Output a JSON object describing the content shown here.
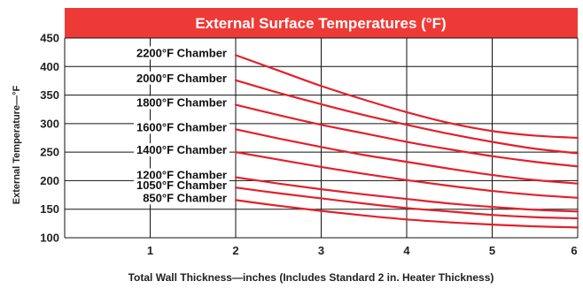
{
  "chart_data": {
    "type": "line",
    "title": "External Surface Temperatures (°F)",
    "xlabel": "Total Wall Thickness—inches (Includes Standard 2 in. Heater Thickness)",
    "ylabel": "External Temperature—°F",
    "xlim": [
      0,
      6
    ],
    "ylim": [
      100,
      450
    ],
    "x_ticks": [
      "1",
      "2",
      "3",
      "4",
      "5",
      "6"
    ],
    "y_ticks": [
      "100",
      "150",
      "200",
      "250",
      "300",
      "350",
      "400",
      "450"
    ],
    "grid": true,
    "series": [
      {
        "name": "2200°F Chamber",
        "x": [
          2,
          2.5,
          3,
          3.5,
          4,
          4.5,
          5,
          5.5,
          6
        ],
        "y": [
          420,
          393,
          366,
          342,
          320,
          301,
          287,
          279,
          275
        ]
      },
      {
        "name": "2000°F Chamber",
        "x": [
          2,
          2.5,
          3,
          3.5,
          4,
          4.5,
          5,
          5.5,
          6
        ],
        "y": [
          376,
          354,
          334,
          315,
          298,
          282,
          268,
          256,
          248
        ]
      },
      {
        "name": "1800°F Chamber",
        "x": [
          2,
          2.5,
          3,
          3.5,
          4,
          4.5,
          5,
          5.5,
          6
        ],
        "y": [
          333,
          315,
          298,
          283,
          268,
          255,
          243,
          233,
          225
        ]
      },
      {
        "name": "1600°F Chamber",
        "x": [
          2,
          2.5,
          3,
          3.5,
          4,
          4.5,
          5,
          5.5,
          6
        ],
        "y": [
          290,
          274,
          259,
          245,
          233,
          221,
          210,
          201,
          195
        ]
      },
      {
        "name": "1400°F Chamber",
        "x": [
          2,
          2.5,
          3,
          3.5,
          4,
          4.5,
          5,
          5.5,
          6
        ],
        "y": [
          250,
          237,
          224,
          212,
          201,
          191,
          182,
          175,
          170
        ]
      },
      {
        "name": "1200°F Chamber",
        "x": [
          2,
          2.5,
          3,
          3.5,
          4,
          4.5,
          5,
          5.5,
          6
        ],
        "y": [
          206,
          195,
          185,
          176,
          168,
          160,
          154,
          149,
          146
        ]
      },
      {
        "name": "1050°F Chamber",
        "x": [
          2,
          2.5,
          3,
          3.5,
          4,
          4.5,
          5,
          5.5,
          6
        ],
        "y": [
          188,
          178,
          169,
          160,
          152,
          146,
          140,
          136,
          134
        ]
      },
      {
        "name": "850°F Chamber",
        "x": [
          2,
          2.5,
          3,
          3.5,
          4,
          4.5,
          5,
          5.5,
          6
        ],
        "y": [
          166,
          156,
          147,
          139,
          132,
          127,
          123,
          120,
          118
        ]
      }
    ],
    "colors": {
      "title_bar": "#ee3a36",
      "curve": "#e3202b",
      "grid": "#111111"
    }
  }
}
